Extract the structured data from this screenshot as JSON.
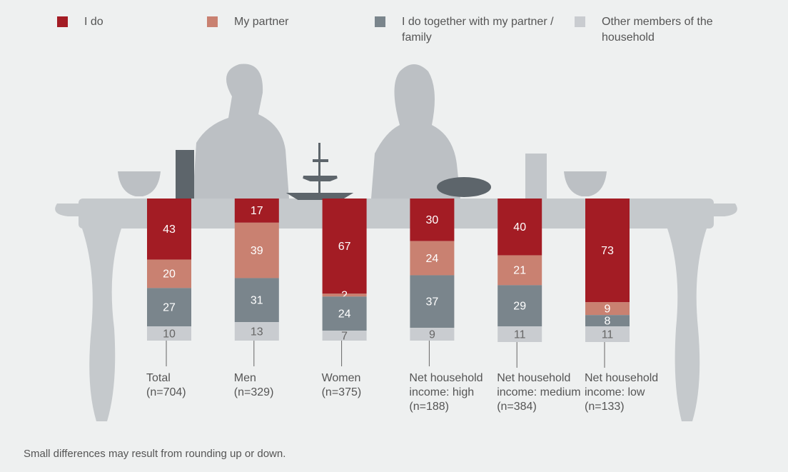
{
  "chart_data": {
    "type": "stacked_bar",
    "categories": [
      "Total (n=704)",
      "Men (n=329)",
      "Women (n=375)",
      "Net household income: high (n=188)",
      "Net household income: medium (n=384)",
      "Net household income: low (n=133)"
    ],
    "series": [
      {
        "name": "I do",
        "color": "#a31c24",
        "values": [
          43,
          17,
          67,
          30,
          40,
          73
        ]
      },
      {
        "name": "My partner",
        "color": "#c98171",
        "values": [
          20,
          39,
          2,
          24,
          21,
          9
        ]
      },
      {
        "name": "I do together with my partner / family",
        "color": "#7a858c",
        "values": [
          27,
          31,
          24,
          37,
          29,
          8
        ]
      },
      {
        "name": "Other members of the household",
        "color": "#c9ccd0",
        "values": [
          10,
          13,
          7,
          9,
          11,
          11
        ]
      }
    ],
    "footnote": "Small differences may result from rounding up or down."
  }
}
